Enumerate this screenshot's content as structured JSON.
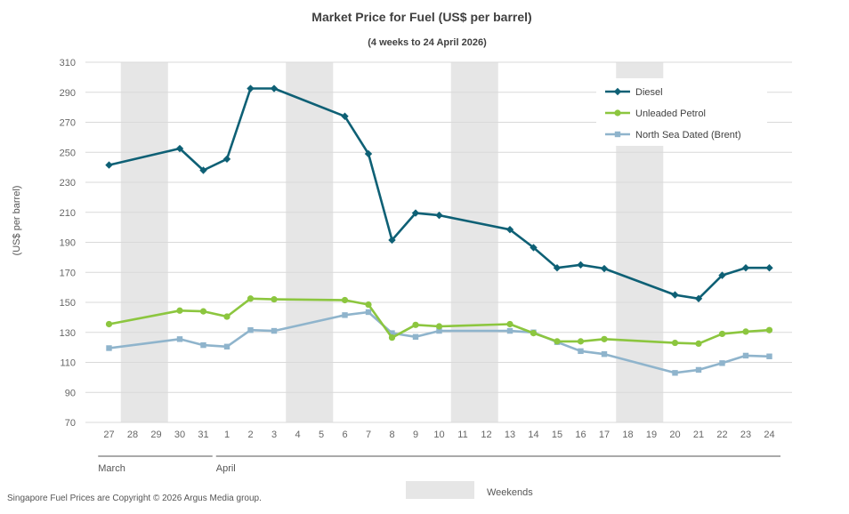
{
  "chart_data": {
    "type": "line",
    "title": "Market Price for Fuel (US$ per barrel)",
    "subtitle": "(4 weeks to 24 April  2026)",
    "ylabel": "(US$ per barrel)",
    "ylim": [
      70,
      310
    ],
    "yticks": [
      70,
      90,
      110,
      130,
      150,
      170,
      190,
      210,
      230,
      250,
      270,
      290,
      310
    ],
    "grid": true,
    "legend_position": "top-right",
    "categories": [
      "27",
      "28",
      "29",
      "30",
      "31",
      "1",
      "2",
      "3",
      "4",
      "5",
      "6",
      "7",
      "8",
      "9",
      "10",
      "11",
      "12",
      "13",
      "14",
      "15",
      "16",
      "17",
      "18",
      "19",
      "20",
      "21",
      "22",
      "23",
      "24"
    ],
    "month_labels": [
      {
        "label": "March",
        "start": 0,
        "end": 4
      },
      {
        "label": "April",
        "start": 5,
        "end": 28
      }
    ],
    "weekends": [
      [
        1,
        2
      ],
      [
        8,
        9
      ],
      [
        15,
        16
      ],
      [
        22,
        23
      ]
    ],
    "series": [
      {
        "name": "Diesel",
        "color": "#0e6075",
        "marker": "diamond",
        "values": [
          241.5,
          null,
          null,
          252.5,
          238,
          245.5,
          292.5,
          292.5,
          null,
          null,
          274,
          249,
          191.5,
          209.5,
          208,
          null,
          null,
          198.5,
          186.5,
          173,
          175,
          172.5,
          null,
          null,
          155,
          152.5,
          168,
          173,
          173
        ]
      },
      {
        "name": "Unleaded Petrol",
        "color": "#8cc63f",
        "marker": "circle",
        "values": [
          135.5,
          null,
          null,
          144.5,
          144,
          140.5,
          152.5,
          152,
          null,
          null,
          151.5,
          148.5,
          126.5,
          135,
          134,
          null,
          null,
          135.5,
          129.5,
          124,
          124,
          125.5,
          null,
          null,
          123,
          122.5,
          129,
          130.5,
          131.5
        ]
      },
      {
        "name": "North Sea Dated (Brent)",
        "color": "#8fb4cc",
        "marker": "square",
        "values": [
          119.5,
          null,
          null,
          125.5,
          121.5,
          120.5,
          131.5,
          131,
          null,
          null,
          141.5,
          143.5,
          129.5,
          127,
          131,
          null,
          null,
          131,
          130,
          123.5,
          117.5,
          115.5,
          null,
          null,
          103,
          105,
          109.5,
          114.5,
          114
        ]
      }
    ]
  },
  "legend": {
    "items": [
      "Diesel",
      "Unleaded Petrol",
      "North Sea Dated (Brent)"
    ]
  },
  "weekend_key_label": "Weekends",
  "weekend_color": "#e6e6e6",
  "grid_color": "#d9d9d9",
  "copyright": "Singapore Fuel Prices are Copyright © 2026 Argus Media group."
}
